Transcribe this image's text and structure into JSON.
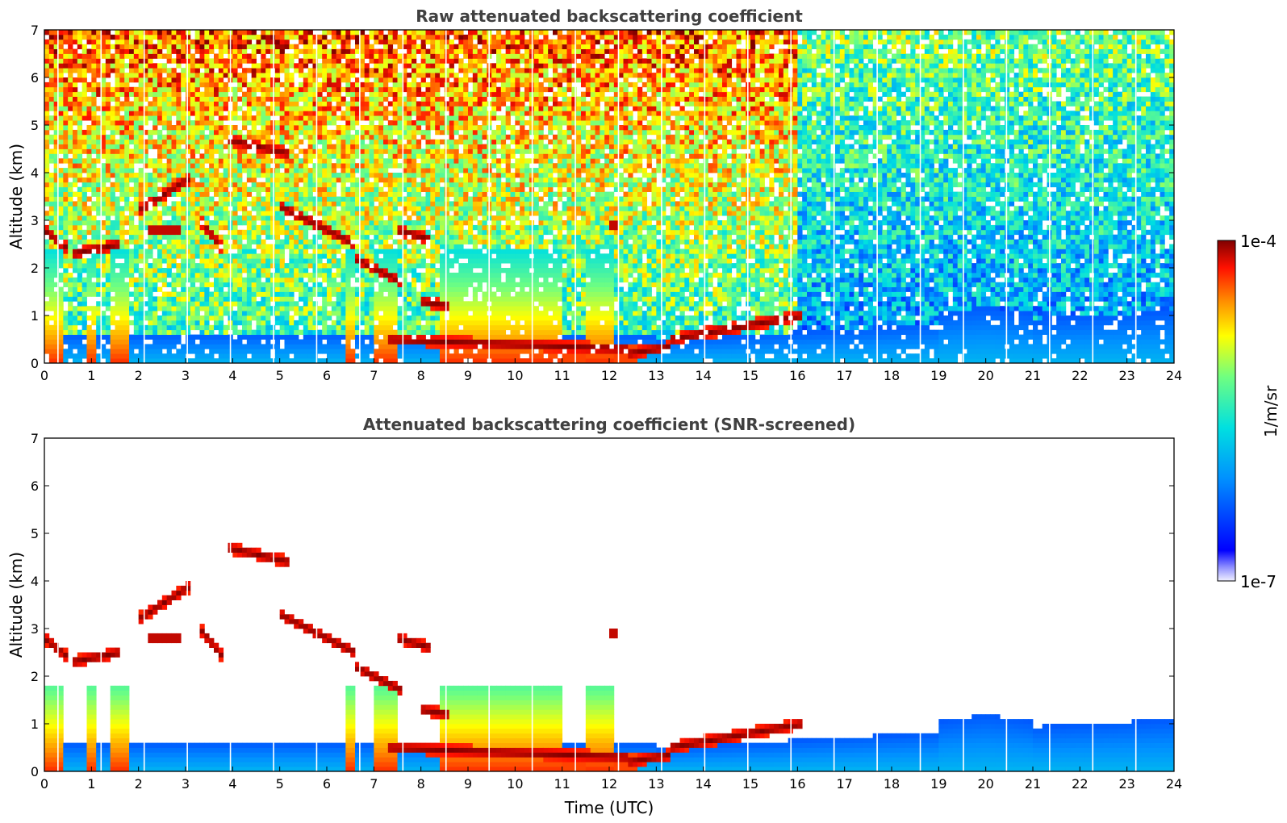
{
  "chart_data": [
    {
      "type": "heatmap",
      "title": "Raw attenuated backscattering coefficient",
      "xlabel": "",
      "ylabel": "Altitude (km)",
      "xlim": [
        0,
        24
      ],
      "ylim": [
        0,
        7
      ],
      "xticks": [
        "0",
        "1",
        "2",
        "3",
        "4",
        "5",
        "6",
        "7",
        "8",
        "9",
        "10",
        "11",
        "12",
        "13",
        "14",
        "15",
        "16",
        "17",
        "18",
        "19",
        "20",
        "21",
        "22",
        "23",
        "24"
      ],
      "yticks": [
        "0",
        "1",
        "2",
        "3",
        "4",
        "5",
        "6",
        "7"
      ],
      "screened": false,
      "features": {
        "cloud_layers": [
          {
            "time": [
              0.0,
              0.5
            ],
            "altitude": [
              2.8,
              2.4
            ]
          },
          {
            "time": [
              0.6,
              1.6
            ],
            "altitude": [
              2.3,
              2.5
            ]
          },
          {
            "time": [
              2.0,
              3.1
            ],
            "altitude": [
              3.2,
              3.9
            ]
          },
          {
            "time": [
              2.2,
              2.9
            ],
            "altitude": [
              2.8,
              2.8
            ]
          },
          {
            "time": [
              3.3,
              3.8
            ],
            "altitude": [
              3.0,
              2.4
            ]
          },
          {
            "time": [
              3.9,
              5.2
            ],
            "altitude": [
              4.7,
              4.4
            ]
          },
          {
            "time": [
              5.0,
              6.6
            ],
            "altitude": [
              3.3,
              2.5
            ]
          },
          {
            "time": [
              6.6,
              7.6
            ],
            "altitude": [
              2.2,
              1.7
            ]
          },
          {
            "time": [
              7.5,
              8.2
            ],
            "altitude": [
              2.8,
              2.6
            ]
          },
          {
            "time": [
              8.0,
              8.6
            ],
            "altitude": [
              1.3,
              1.2
            ]
          },
          {
            "time": [
              12.0,
              12.2
            ],
            "altitude": [
              2.9,
              2.9
            ]
          },
          {
            "time": [
              7.3,
              12.4
            ],
            "altitude": [
              0.5,
              0.3
            ]
          },
          {
            "time": [
              12.4,
              13.3
            ],
            "altitude": [
              0.2,
              0.35
            ]
          },
          {
            "time": [
              13.3,
              16.1
            ],
            "altitude": [
              0.5,
              1.0
            ]
          }
        ],
        "aerosol_boundary_layer": {
          "time": [
            0,
            24
          ],
          "top_altitude": [
            0.5,
            1.1
          ]
        },
        "aerosol_layer_19_21_km": {
          "time": [
            19.0,
            21.0
          ],
          "top_altitude": 1.2
        }
      }
    },
    {
      "type": "heatmap",
      "title": "Attenuated backscattering coefficient (SNR-screened)",
      "xlabel": "Time (UTC)",
      "ylabel": "Altitude (km)",
      "xlim": [
        0,
        24
      ],
      "ylim": [
        0,
        7
      ],
      "xticks": [
        "0",
        "1",
        "2",
        "3",
        "4",
        "5",
        "6",
        "7",
        "8",
        "9",
        "10",
        "11",
        "12",
        "13",
        "14",
        "15",
        "16",
        "17",
        "18",
        "19",
        "20",
        "21",
        "22",
        "23",
        "24"
      ],
      "yticks": [
        "0",
        "1",
        "2",
        "3",
        "4",
        "5",
        "6",
        "7"
      ],
      "screened": true
    }
  ],
  "colorbar": {
    "label": "1/m/sr",
    "min_label": "1e-7",
    "max_label": "1e-4",
    "min": 1e-07,
    "max": 0.0001,
    "scale": "log",
    "colormap": "jet"
  }
}
